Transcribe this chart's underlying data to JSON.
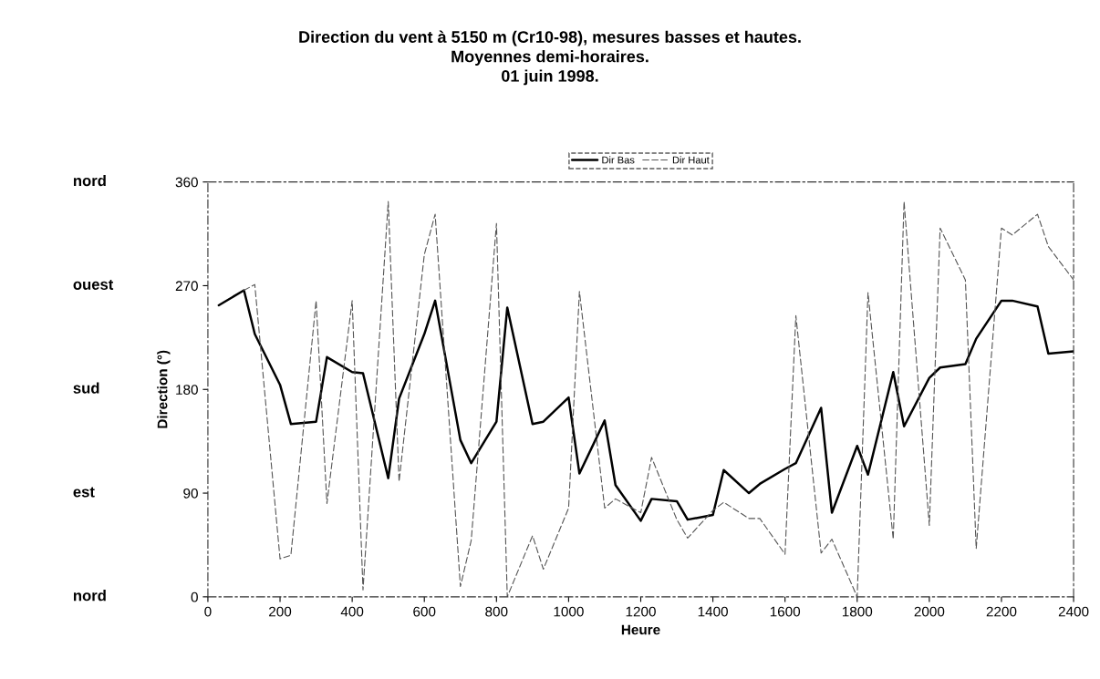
{
  "chart_data": {
    "type": "line",
    "title": "Direction du vent à 5150 m (Cr10-98), mesures basses et hautes.\nMoyennes demi-horaires.\n01 juin 1998.",
    "xlabel": "Heure",
    "ylabel": "Direction (°)",
    "x": [
      30,
      100,
      130,
      200,
      230,
      300,
      330,
      400,
      430,
      500,
      530,
      600,
      630,
      700,
      730,
      800,
      830,
      900,
      930,
      1000,
      1030,
      1100,
      1130,
      1200,
      1230,
      1300,
      1330,
      1400,
      1430,
      1500,
      1530,
      1600,
      1630,
      1700,
      1730,
      1800,
      1830,
      1900,
      1930,
      2000,
      2030,
      2100,
      2130,
      2200,
      2230,
      2300,
      2330,
      2400
    ],
    "series": [
      {
        "name": "Dir Bas",
        "color": "#000000",
        "line_style": "solid",
        "values": [
          253,
          266,
          228,
          184,
          150,
          152,
          208,
          195,
          194,
          103,
          172,
          228,
          257,
          136,
          116,
          152,
          251,
          150,
          152,
          173,
          107,
          153,
          97,
          66,
          85,
          83,
          67,
          71,
          110,
          90,
          98,
          111,
          116,
          164,
          73,
          131,
          106,
          195,
          148,
          190,
          199,
          202,
          224,
          257,
          257,
          252,
          211,
          213
        ]
      },
      {
        "name": "Dir Haut",
        "color": "#555555",
        "line_style": "dashed",
        "values": [
          null,
          266,
          271,
          33,
          36,
          257,
          81,
          257,
          6,
          343,
          100,
          297,
          332,
          9,
          49,
          324,
          0,
          53,
          24,
          77,
          265,
          77,
          85,
          73,
          121,
          67,
          51,
          75,
          82,
          68,
          68,
          37,
          244,
          38,
          50,
          0,
          264,
          50,
          343,
          62,
          320,
          275,
          42,
          320,
          314,
          332,
          304,
          275
        ]
      }
    ],
    "xlim": [
      0,
      2400
    ],
    "xticks": [
      0,
      200,
      400,
      600,
      800,
      1000,
      1200,
      1400,
      1600,
      1800,
      2000,
      2200,
      2400
    ],
    "ylim": [
      0,
      360
    ],
    "yticks": [
      0,
      90,
      180,
      270,
      360
    ],
    "annotations": [
      "nord",
      "ouest",
      "sud",
      "est",
      "nord"
    ],
    "legend": "top",
    "grid": false
  }
}
